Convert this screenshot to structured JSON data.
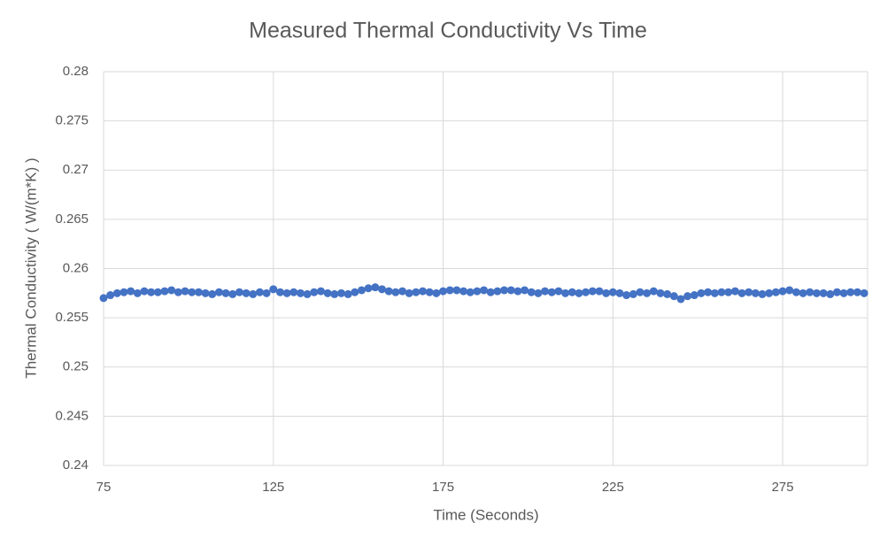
{
  "chart_data": {
    "type": "scatter",
    "title": "Measured Thermal Conductivity Vs Time",
    "x_label": "Time (Seconds)",
    "y_label": "Thermal Conductivity ( W/(m*K) )",
    "xlim": [
      75,
      300
    ],
    "xticks": [
      75,
      125,
      175,
      225,
      275
    ],
    "ylim": [
      0.24,
      0.28
    ],
    "yticks": [
      0.24,
      0.245,
      0.25,
      0.255,
      0.26,
      0.265,
      0.27,
      0.275,
      0.28
    ],
    "grid": true,
    "series": [
      {
        "name": "Thermal Conductivity",
        "color": "#4472c4",
        "x": [
          75,
          77,
          79,
          81,
          83,
          85,
          87,
          89,
          91,
          93,
          95,
          97,
          99,
          101,
          103,
          105,
          107,
          109,
          111,
          113,
          115,
          117,
          119,
          121,
          123,
          125,
          127,
          129,
          131,
          133,
          135,
          137,
          139,
          141,
          143,
          145,
          147,
          149,
          151,
          153,
          155,
          157,
          159,
          161,
          163,
          165,
          167,
          169,
          171,
          173,
          175,
          177,
          179,
          181,
          183,
          185,
          187,
          189,
          191,
          193,
          195,
          197,
          199,
          201,
          203,
          205,
          207,
          209,
          211,
          213,
          215,
          217,
          219,
          221,
          223,
          225,
          227,
          229,
          231,
          233,
          235,
          237,
          239,
          241,
          243,
          245,
          247,
          249,
          251,
          253,
          255,
          257,
          259,
          261,
          263,
          265,
          267,
          269,
          271,
          273,
          275,
          277,
          279,
          281,
          283,
          285,
          287,
          289,
          291,
          293,
          295,
          297,
          299
        ],
        "values": [
          0.257,
          0.2573,
          0.2575,
          0.2576,
          0.2577,
          0.2575,
          0.2577,
          0.2576,
          0.2576,
          0.2577,
          0.2578,
          0.2576,
          0.2577,
          0.2576,
          0.2576,
          0.2575,
          0.2574,
          0.2576,
          0.2575,
          0.2574,
          0.2576,
          0.2575,
          0.2574,
          0.2576,
          0.2575,
          0.2579,
          0.2576,
          0.2575,
          0.2576,
          0.2575,
          0.2574,
          0.2576,
          0.2577,
          0.2575,
          0.2574,
          0.2575,
          0.2574,
          0.2576,
          0.2578,
          0.258,
          0.2581,
          0.2579,
          0.2577,
          0.2576,
          0.2577,
          0.2575,
          0.2576,
          0.2577,
          0.2576,
          0.2575,
          0.2577,
          0.2578,
          0.2578,
          0.2577,
          0.2576,
          0.2577,
          0.2578,
          0.2576,
          0.2577,
          0.2578,
          0.2578,
          0.2577,
          0.2578,
          0.2576,
          0.2575,
          0.2577,
          0.2576,
          0.2577,
          0.2575,
          0.2576,
          0.2575,
          0.2576,
          0.2577,
          0.2577,
          0.2575,
          0.2576,
          0.2575,
          0.2573,
          0.2574,
          0.2576,
          0.2575,
          0.2577,
          0.2575,
          0.2574,
          0.2572,
          0.2569,
          0.2572,
          0.2573,
          0.2575,
          0.2576,
          0.2575,
          0.2576,
          0.2576,
          0.2577,
          0.2575,
          0.2576,
          0.2575,
          0.2574,
          0.2575,
          0.2576,
          0.2577,
          0.2578,
          0.2576,
          0.2575,
          0.2576,
          0.2575,
          0.2575,
          0.2574,
          0.2576,
          0.2575,
          0.2576,
          0.2576,
          0.2575
        ]
      }
    ]
  }
}
